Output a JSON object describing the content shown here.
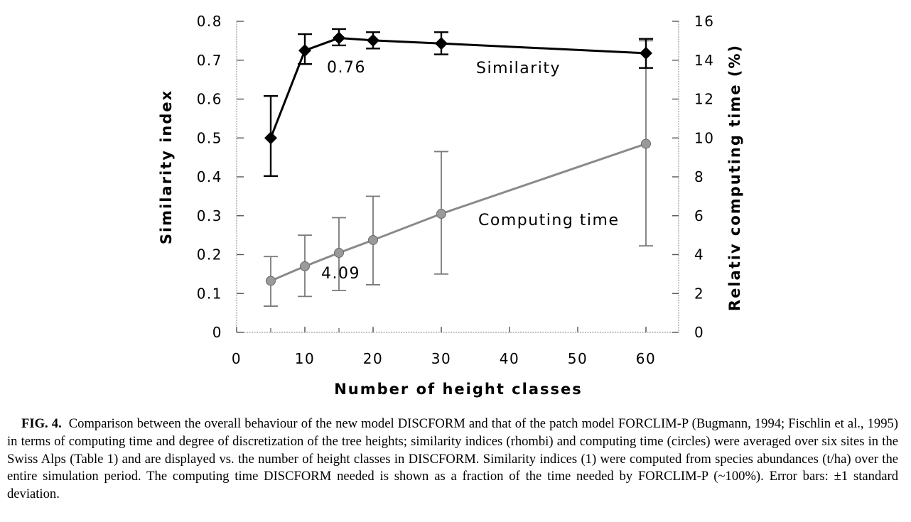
{
  "chart_data": {
    "type": "line",
    "x": [
      5,
      10,
      15,
      20,
      30,
      60
    ],
    "xlabel": "Number of height classes",
    "xlim": [
      0,
      65
    ],
    "x_ticks": [
      "0",
      "10",
      "20",
      "30",
      "40",
      "50",
      "60"
    ],
    "y_left": {
      "label": "Similarity index",
      "lim": [
        0,
        0.8
      ],
      "ticks": [
        "0",
        "0.1",
        "0.2",
        "0.3",
        "0.4",
        "0.5",
        "0.6",
        "0.7",
        "0.8"
      ]
    },
    "y_right": {
      "label": "Relativ computing time (%)",
      "lim": [
        0,
        16
      ],
      "ticks": [
        "0",
        "2",
        "4",
        "6",
        "8",
        "10",
        "12",
        "14",
        "16"
      ]
    },
    "series": [
      {
        "name": "Similarity",
        "axis": "left",
        "marker": "diamond",
        "color": "#000000",
        "values": [
          0.5,
          0.725,
          0.757,
          0.751,
          0.743,
          0.718
        ],
        "err_low": [
          0.402,
          0.69,
          0.738,
          0.73,
          0.715,
          0.68
        ],
        "err_high": [
          0.608,
          0.767,
          0.78,
          0.772,
          0.772,
          0.755
        ]
      },
      {
        "name": "Computing time",
        "axis": "right",
        "marker": "circle",
        "color": "#8a8a8a",
        "values": [
          2.65,
          3.4,
          4.09,
          4.75,
          6.1,
          9.7
        ],
        "err_low": [
          1.35,
          1.85,
          2.15,
          2.45,
          3.0,
          4.45
        ],
        "err_high": [
          3.9,
          5.0,
          5.9,
          7.0,
          9.3,
          15.0
        ]
      }
    ],
    "annotations": [
      {
        "text": "0.76"
      },
      {
        "text": "4.09"
      }
    ]
  },
  "caption": {
    "label": "FIG. 4.",
    "text": "Comparison between the overall behaviour of the new model DISCFORM and that of the patch model FORCLIM-P (Bugmann, 1994; Fischlin et al., 1995) in terms of computing time and degree of discretization of the tree heights; similarity indices (rhombi) and computing time (circles) were averaged over six sites in the Swiss Alps (Table 1) and are displayed vs. the number of height classes in DISCFORM. Similarity indices (1) were computed from species abundances (t/ha) over the entire simulation period. The computing time DISCFORM needed is shown as a fraction of the time needed by FORCLIM-P (~100%). Error bars: ±1 standard deviation."
  }
}
